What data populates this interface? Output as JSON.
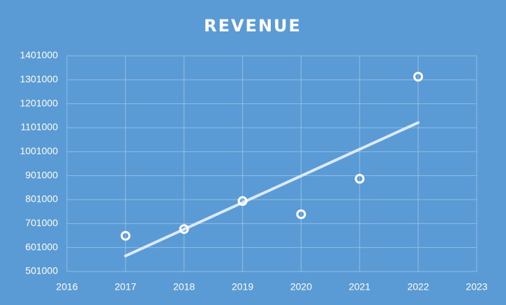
{
  "chart_data": {
    "type": "scatter",
    "title": "REVENUE",
    "x": [
      2017,
      2018,
      2019,
      2020,
      2021,
      2022
    ],
    "values": [
      650000,
      678000,
      795000,
      740000,
      888000,
      1314000
    ],
    "color": "#ffffff",
    "trendline": "linear",
    "xlim": [
      2016,
      2023
    ],
    "xticks": [
      2016,
      2017,
      2018,
      2019,
      2020,
      2021,
      2022,
      2023
    ],
    "ylim": [
      501000,
      1401000
    ],
    "yticks": [
      501000,
      601000,
      701000,
      801000,
      901000,
      1001000,
      1101000,
      1201000,
      1301000,
      1401000
    ],
    "grid": true
  }
}
